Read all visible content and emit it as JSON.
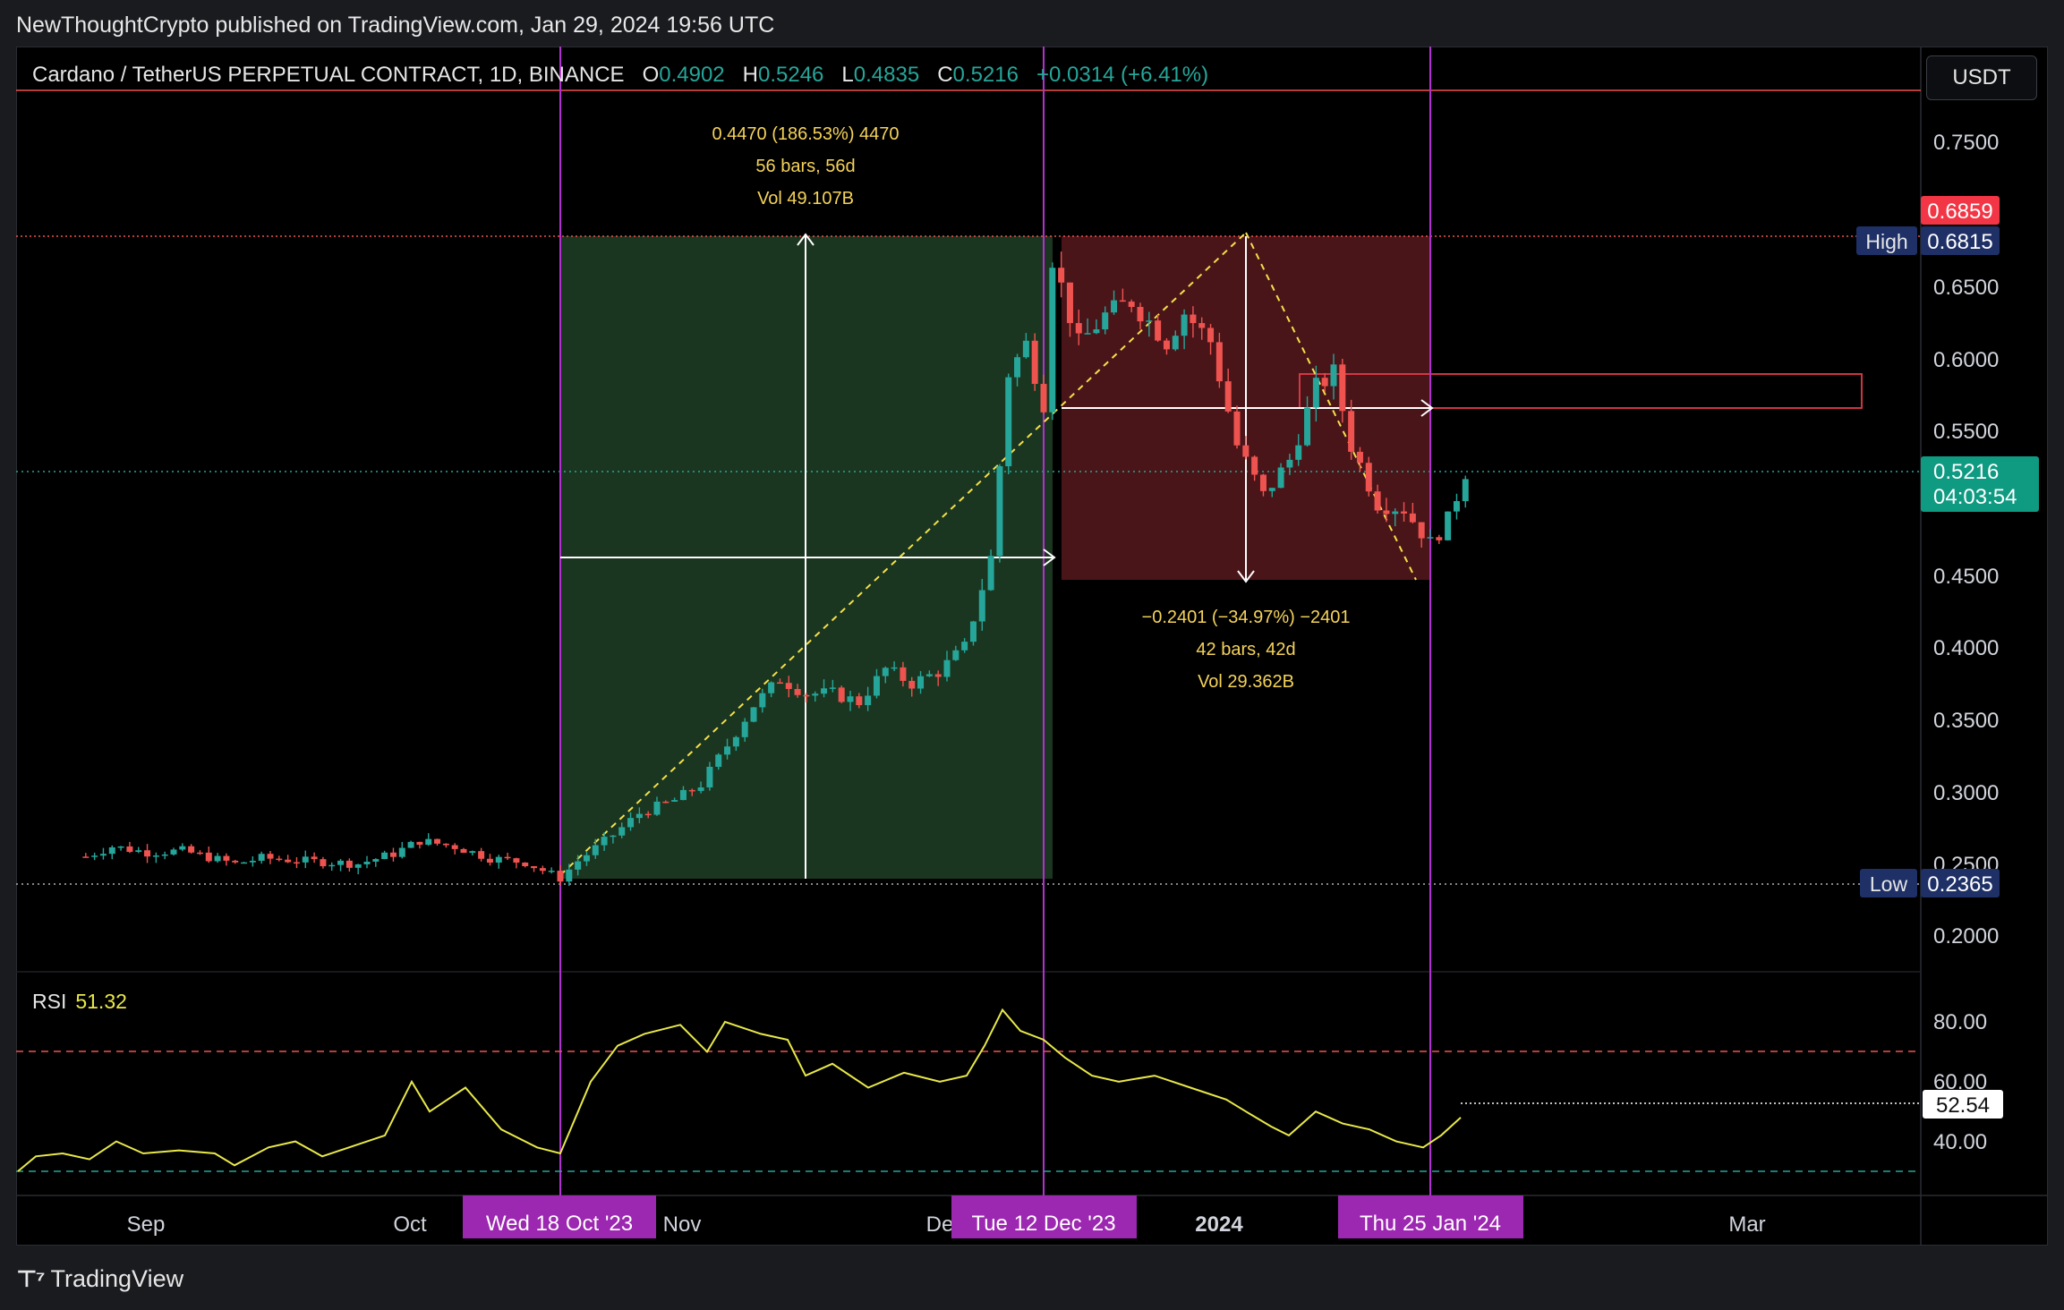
{
  "publish_line": "NewThoughtCrypto published on TradingView.com, Jan 29, 2024 19:56 UTC",
  "footer_brand": "TradingView",
  "currency": "USDT",
  "legend": {
    "symbol": "Cardano / TetherUS PERPETUAL CONTRACT, 1D, BINANCE",
    "o_label": "O",
    "o": "0.4902",
    "h_label": "H",
    "h": "0.5246",
    "l_label": "L",
    "l": "0.4835",
    "c_label": "C",
    "c": "0.5216",
    "change": "+0.0314 (+6.41%)"
  },
  "rsi": {
    "label": "RSI",
    "value": "51.32",
    "marker": "52.54"
  },
  "colors": {
    "up": "#26a69a",
    "down": "#ef5350",
    "rsi": "#e8e84a",
    "vline": "#b42fd1",
    "long_zone": "#1b3620",
    "short_zone": "#4a1519"
  },
  "chart_data": {
    "type": "candlestick",
    "y_ticks": [
      "0.7500",
      "0.6500",
      "0.6000",
      "0.5500",
      "0.4500",
      "0.4000",
      "0.3500",
      "0.3000",
      "0.2500",
      "0.2000"
    ],
    "ylim": [
      0.16,
      0.79
    ],
    "x_ticks": [
      "Sep",
      "Oct",
      "Nov",
      "De",
      "2024",
      "Mar"
    ],
    "price_labels": {
      "top_red": "0.6859",
      "high_label": "High",
      "high": "0.6815",
      "last": "0.5216",
      "countdown": "04:03:54",
      "low_label": "Low",
      "low": "0.2365"
    },
    "date_markers": [
      "Wed 18 Oct '23",
      "Tue 12 Dec '23",
      "Thu 25 Jan '24"
    ],
    "long_measure": {
      "line1": "0.4470 (186.53%) 4470",
      "line2": "56 bars, 56d",
      "line3": "Vol 49.107B"
    },
    "short_measure": {
      "line1": "−0.2401 (−34.97%) −2401",
      "line2": "42 bars, 42d",
      "line3": "Vol 29.362B"
    },
    "rsi_ticks": [
      "80.00",
      "60.00",
      "40.00"
    ],
    "rsi_levels": {
      "overbought": 70,
      "oversold": 30
    },
    "close_path": [
      [
        "2023-08-25",
        0.255
      ],
      [
        "2023-08-28",
        0.262
      ],
      [
        "2023-09-01",
        0.258
      ],
      [
        "2023-09-05",
        0.259
      ],
      [
        "2023-09-11",
        0.25
      ],
      [
        "2023-09-14",
        0.254
      ],
      [
        "2023-09-19",
        0.252
      ],
      [
        "2023-09-25",
        0.25
      ],
      [
        "2023-09-29",
        0.257
      ],
      [
        "2023-10-02",
        0.266
      ],
      [
        "2023-10-06",
        0.262
      ],
      [
        "2023-10-10",
        0.254
      ],
      [
        "2023-10-14",
        0.251
      ],
      [
        "2023-10-18",
        0.24
      ],
      [
        "2023-10-20",
        0.252
      ],
      [
        "2023-10-24",
        0.27
      ],
      [
        "2023-10-27",
        0.285
      ],
      [
        "2023-10-31",
        0.294
      ],
      [
        "2023-11-03",
        0.305
      ],
      [
        "2023-11-06",
        0.332
      ],
      [
        "2023-11-09",
        0.36
      ],
      [
        "2023-11-12",
        0.378
      ],
      [
        "2023-11-15",
        0.368
      ],
      [
        "2023-11-18",
        0.368
      ],
      [
        "2023-11-21",
        0.362
      ],
      [
        "2023-11-24",
        0.385
      ],
      [
        "2023-11-27",
        0.375
      ],
      [
        "2023-11-30",
        0.383
      ],
      [
        "2023-12-03",
        0.4
      ],
      [
        "2023-12-06",
        0.462
      ],
      [
        "2023-12-08",
        0.59
      ],
      [
        "2023-12-10",
        0.61
      ],
      [
        "2023-12-12",
        0.57
      ],
      [
        "2023-12-13",
        0.67
      ],
      [
        "2023-12-16",
        0.61
      ],
      [
        "2023-12-19",
        0.63
      ],
      [
        "2023-12-22",
        0.64
      ],
      [
        "2023-12-26",
        0.612
      ],
      [
        "2023-12-28",
        0.632
      ],
      [
        "2023-12-31",
        0.612
      ],
      [
        "2024-01-03",
        0.54
      ],
      [
        "2024-01-06",
        0.505
      ],
      [
        "2024-01-09",
        0.53
      ],
      [
        "2024-01-12",
        0.58
      ],
      [
        "2024-01-14",
        0.59
      ],
      [
        "2024-01-16",
        0.54
      ],
      [
        "2024-01-19",
        0.5
      ],
      [
        "2024-01-22",
        0.496
      ],
      [
        "2024-01-25",
        0.472
      ],
      [
        "2024-01-27",
        0.488
      ],
      [
        "2024-01-29",
        0.5216
      ]
    ]
  }
}
